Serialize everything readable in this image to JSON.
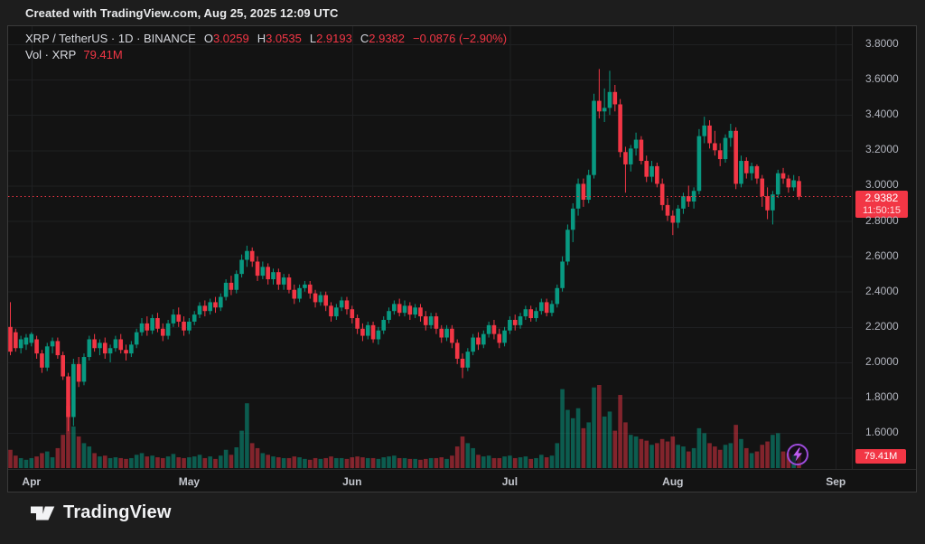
{
  "header": {
    "credit": "Created with TradingView.com, Aug 25, 2025 12:09 UTC"
  },
  "legend": {
    "title": "XRP / TetherUS · 1D · BINANCE",
    "ohlc": [
      {
        "label": "O",
        "value": "3.0259"
      },
      {
        "label": "H",
        "value": "3.0535"
      },
      {
        "label": "L",
        "value": "2.9193"
      },
      {
        "label": "C",
        "value": "2.9382"
      }
    ],
    "change": "−0.0876 (−2.90%)",
    "volume_label": "Vol · XRP",
    "volume_value": "79.41M"
  },
  "last_price_badge": {
    "price": "2.9382",
    "countdown": "11:50:15"
  },
  "volume_badge": "79.41M",
  "footer": {
    "brand": "TradingView"
  },
  "icons": {
    "boost": "lightning-bolt-icon",
    "logo": "tradingview-glyph-icon"
  },
  "colors": {
    "up": "#089981",
    "down": "#f23645",
    "vol_up": "rgba(8,153,129,0.55)",
    "vol_down": "rgba(242,54,69,0.5)",
    "grid": "#1f2022",
    "axis_text": "#b2b5be",
    "badge_bg": "#f23645",
    "boost_ring": "#9c4bd9",
    "boost_bolt": "#be5cf0"
  },
  "chart_data": {
    "type": "candlestick",
    "symbol": "XRP / TetherUS",
    "interval": "1D",
    "exchange": "BINANCE",
    "title": "XRP / TetherUS daily candlestick chart with volume",
    "legend_position": "top-left",
    "grid": true,
    "last_price": 2.9382,
    "last_change": "−0.0876 (−2.90%)",
    "last_volume": "79.41M",
    "price_axis": {
      "side": "right",
      "visible_range": [
        1.52,
        3.94
      ],
      "ticks": [
        {
          "price": 3.8,
          "label": "3.8000"
        },
        {
          "price": 3.6,
          "label": "3.6000"
        },
        {
          "price": 3.4,
          "label": "3.4000"
        },
        {
          "price": 3.2,
          "label": "3.2000"
        },
        {
          "price": 3.0,
          "label": "3.0000"
        },
        {
          "price": 2.8,
          "label": "2.8000"
        },
        {
          "price": 2.6,
          "label": "2.6000"
        },
        {
          "price": 2.4,
          "label": "2.4000"
        },
        {
          "price": 2.2,
          "label": "2.2000"
        },
        {
          "price": 2.0,
          "label": "2.0000"
        },
        {
          "price": 1.8,
          "label": "1.8000"
        },
        {
          "price": 1.6,
          "label": "1.6000"
        }
      ]
    },
    "time_axis": {
      "months": [
        {
          "label": "Apr",
          "index": 4
        },
        {
          "label": "May",
          "index": 34
        },
        {
          "label": "Jun",
          "index": 65
        },
        {
          "label": "Jul",
          "index": 95
        },
        {
          "label": "Aug",
          "index": 126
        },
        {
          "label": "Sep",
          "index": 157
        }
      ]
    },
    "candles_format": [
      "open",
      "high",
      "low",
      "close",
      "relative_volume_pct"
    ],
    "candles": [
      [
        2.2,
        2.34,
        2.04,
        2.06,
        22
      ],
      [
        2.17,
        2.19,
        2.06,
        2.08,
        15
      ],
      [
        2.08,
        2.15,
        2.05,
        2.13,
        12
      ],
      [
        2.1,
        2.16,
        2.07,
        2.14,
        10
      ],
      [
        2.11,
        2.17,
        2.09,
        2.16,
        12
      ],
      [
        2.13,
        2.15,
        2.02,
        2.05,
        14
      ],
      [
        2.05,
        2.07,
        1.94,
        1.97,
        18
      ],
      [
        1.97,
        2.11,
        1.95,
        2.09,
        20
      ],
      [
        2.09,
        2.14,
        2.05,
        2.12,
        13
      ],
      [
        2.12,
        2.14,
        2.02,
        2.04,
        24
      ],
      [
        2.04,
        2.06,
        1.9,
        1.92,
        40
      ],
      [
        1.92,
        1.94,
        1.61,
        1.69,
        75
      ],
      [
        1.69,
        2.02,
        1.64,
        1.99,
        50
      ],
      [
        1.99,
        2.03,
        1.86,
        1.89,
        38
      ],
      [
        1.89,
        2.05,
        1.87,
        2.03,
        30
      ],
      [
        2.03,
        2.15,
        2.01,
        2.13,
        26
      ],
      [
        2.13,
        2.16,
        2.06,
        2.08,
        18
      ],
      [
        2.08,
        2.13,
        2.04,
        2.11,
        14
      ],
      [
        2.11,
        2.14,
        2.02,
        2.05,
        15
      ],
      [
        2.05,
        2.1,
        2.0,
        2.08,
        12
      ],
      [
        2.08,
        2.15,
        2.06,
        2.13,
        13
      ],
      [
        2.13,
        2.16,
        2.05,
        2.07,
        12
      ],
      [
        2.07,
        2.1,
        2.01,
        2.05,
        11
      ],
      [
        2.05,
        2.12,
        2.03,
        2.1,
        12
      ],
      [
        2.1,
        2.19,
        2.08,
        2.17,
        16
      ],
      [
        2.17,
        2.25,
        2.15,
        2.22,
        18
      ],
      [
        2.22,
        2.26,
        2.15,
        2.18,
        14
      ],
      [
        2.18,
        2.27,
        2.16,
        2.25,
        15
      ],
      [
        2.25,
        2.28,
        2.17,
        2.19,
        13
      ],
      [
        2.19,
        2.22,
        2.12,
        2.15,
        12
      ],
      [
        2.15,
        2.24,
        2.13,
        2.22,
        14
      ],
      [
        2.22,
        2.3,
        2.2,
        2.27,
        17
      ],
      [
        2.27,
        2.31,
        2.2,
        2.23,
        13
      ],
      [
        2.23,
        2.26,
        2.15,
        2.18,
        12
      ],
      [
        2.18,
        2.25,
        2.16,
        2.23,
        13
      ],
      [
        2.23,
        2.29,
        2.21,
        2.27,
        14
      ],
      [
        2.27,
        2.34,
        2.25,
        2.32,
        16
      ],
      [
        2.32,
        2.35,
        2.26,
        2.29,
        12
      ],
      [
        2.29,
        2.36,
        2.27,
        2.34,
        14
      ],
      [
        2.34,
        2.37,
        2.28,
        2.31,
        11
      ],
      [
        2.31,
        2.39,
        2.29,
        2.37,
        15
      ],
      [
        2.37,
        2.47,
        2.35,
        2.45,
        22
      ],
      [
        2.45,
        2.49,
        2.38,
        2.41,
        16
      ],
      [
        2.41,
        2.52,
        2.39,
        2.5,
        25
      ],
      [
        2.5,
        2.61,
        2.48,
        2.58,
        45
      ],
      [
        2.58,
        2.66,
        2.54,
        2.63,
        78
      ],
      [
        2.63,
        2.65,
        2.54,
        2.57,
        30
      ],
      [
        2.57,
        2.6,
        2.46,
        2.49,
        24
      ],
      [
        2.49,
        2.57,
        2.47,
        2.54,
        18
      ],
      [
        2.54,
        2.56,
        2.44,
        2.47,
        16
      ],
      [
        2.47,
        2.53,
        2.44,
        2.51,
        14
      ],
      [
        2.51,
        2.53,
        2.41,
        2.44,
        13
      ],
      [
        2.44,
        2.5,
        2.41,
        2.48,
        12
      ],
      [
        2.48,
        2.5,
        2.39,
        2.41,
        12
      ],
      [
        2.41,
        2.44,
        2.33,
        2.36,
        14
      ],
      [
        2.36,
        2.44,
        2.34,
        2.42,
        13
      ],
      [
        2.42,
        2.46,
        2.4,
        2.44,
        11
      ],
      [
        2.44,
        2.46,
        2.36,
        2.39,
        10
      ],
      [
        2.39,
        2.41,
        2.31,
        2.34,
        12
      ],
      [
        2.34,
        2.4,
        2.32,
        2.38,
        11
      ],
      [
        2.38,
        2.4,
        2.29,
        2.32,
        12
      ],
      [
        2.32,
        2.34,
        2.23,
        2.26,
        14
      ],
      [
        2.26,
        2.33,
        2.24,
        2.31,
        12
      ],
      [
        2.31,
        2.37,
        2.29,
        2.35,
        12
      ],
      [
        2.35,
        2.37,
        2.27,
        2.3,
        11
      ],
      [
        2.3,
        2.32,
        2.22,
        2.25,
        13
      ],
      [
        2.25,
        2.27,
        2.16,
        2.19,
        14
      ],
      [
        2.19,
        2.22,
        2.12,
        2.15,
        13
      ],
      [
        2.15,
        2.23,
        2.13,
        2.21,
        12
      ],
      [
        2.21,
        2.23,
        2.11,
        2.13,
        12
      ],
      [
        2.13,
        2.2,
        2.1,
        2.18,
        11
      ],
      [
        2.18,
        2.26,
        2.16,
        2.24,
        13
      ],
      [
        2.24,
        2.31,
        2.22,
        2.29,
        14
      ],
      [
        2.29,
        2.35,
        2.27,
        2.33,
        15
      ],
      [
        2.33,
        2.36,
        2.26,
        2.28,
        12
      ],
      [
        2.28,
        2.35,
        2.26,
        2.32,
        12
      ],
      [
        2.32,
        2.34,
        2.24,
        2.27,
        11
      ],
      [
        2.27,
        2.33,
        2.25,
        2.31,
        11
      ],
      [
        2.31,
        2.33,
        2.23,
        2.26,
        10
      ],
      [
        2.26,
        2.29,
        2.18,
        2.21,
        11
      ],
      [
        2.21,
        2.28,
        2.19,
        2.26,
        12
      ],
      [
        2.26,
        2.28,
        2.16,
        2.19,
        12
      ],
      [
        2.19,
        2.21,
        2.11,
        2.14,
        13
      ],
      [
        2.14,
        2.21,
        2.12,
        2.19,
        11
      ],
      [
        2.19,
        2.21,
        2.08,
        2.11,
        15
      ],
      [
        2.11,
        2.13,
        1.99,
        2.02,
        26
      ],
      [
        2.02,
        2.05,
        1.91,
        1.97,
        38
      ],
      [
        1.97,
        2.08,
        1.95,
        2.06,
        30
      ],
      [
        2.06,
        2.16,
        2.04,
        2.14,
        24
      ],
      [
        2.14,
        2.17,
        2.07,
        2.1,
        16
      ],
      [
        2.1,
        2.18,
        2.08,
        2.16,
        14
      ],
      [
        2.16,
        2.23,
        2.14,
        2.21,
        15
      ],
      [
        2.21,
        2.24,
        2.13,
        2.16,
        12
      ],
      [
        2.16,
        2.19,
        2.08,
        2.11,
        12
      ],
      [
        2.11,
        2.2,
        2.09,
        2.18,
        14
      ],
      [
        2.18,
        2.26,
        2.16,
        2.24,
        15
      ],
      [
        2.24,
        2.27,
        2.18,
        2.21,
        12
      ],
      [
        2.21,
        2.28,
        2.19,
        2.26,
        13
      ],
      [
        2.26,
        2.32,
        2.24,
        2.3,
        14
      ],
      [
        2.3,
        2.32,
        2.23,
        2.25,
        11
      ],
      [
        2.25,
        2.31,
        2.23,
        2.29,
        12
      ],
      [
        2.29,
        2.36,
        2.27,
        2.34,
        16
      ],
      [
        2.34,
        2.36,
        2.26,
        2.28,
        13
      ],
      [
        2.28,
        2.35,
        2.26,
        2.33,
        15
      ],
      [
        2.33,
        2.44,
        2.31,
        2.42,
        30
      ],
      [
        2.42,
        2.6,
        2.4,
        2.57,
        95
      ],
      [
        2.57,
        2.78,
        2.55,
        2.75,
        70
      ],
      [
        2.75,
        2.9,
        2.68,
        2.87,
        60
      ],
      [
        2.87,
        3.04,
        2.83,
        3.01,
        72
      ],
      [
        3.01,
        3.04,
        2.88,
        2.92,
        48
      ],
      [
        2.92,
        3.09,
        2.9,
        3.06,
        55
      ],
      [
        3.06,
        3.52,
        3.04,
        3.48,
        97
      ],
      [
        3.48,
        3.66,
        3.38,
        3.42,
        100
      ],
      [
        3.42,
        3.55,
        3.36,
        3.44,
        62
      ],
      [
        3.44,
        3.65,
        3.4,
        3.53,
        68
      ],
      [
        3.53,
        3.57,
        3.42,
        3.46,
        45
      ],
      [
        3.46,
        3.49,
        3.16,
        3.19,
        88
      ],
      [
        3.19,
        3.22,
        2.96,
        3.12,
        55
      ],
      [
        3.12,
        3.23,
        3.08,
        3.21,
        40
      ],
      [
        3.21,
        3.3,
        3.17,
        3.26,
        38
      ],
      [
        3.26,
        3.28,
        3.12,
        3.14,
        35
      ],
      [
        3.14,
        3.17,
        3.02,
        3.05,
        33
      ],
      [
        3.05,
        3.14,
        3.02,
        3.11,
        28
      ],
      [
        3.11,
        3.13,
        2.99,
        3.01,
        30
      ],
      [
        3.01,
        3.04,
        2.86,
        2.89,
        35
      ],
      [
        2.89,
        2.93,
        2.8,
        2.83,
        32
      ],
      [
        2.83,
        2.86,
        2.72,
        2.79,
        38
      ],
      [
        2.79,
        2.89,
        2.76,
        2.87,
        28
      ],
      [
        2.87,
        2.96,
        2.84,
        2.94,
        26
      ],
      [
        2.94,
        3.0,
        2.88,
        2.91,
        20
      ],
      [
        2.91,
        2.99,
        2.87,
        2.97,
        24
      ],
      [
        2.97,
        3.32,
        2.95,
        3.28,
        48
      ],
      [
        3.28,
        3.39,
        3.24,
        3.34,
        42
      ],
      [
        3.34,
        3.37,
        3.21,
        3.24,
        30
      ],
      [
        3.24,
        3.31,
        3.17,
        3.2,
        26
      ],
      [
        3.2,
        3.24,
        3.11,
        3.15,
        22
      ],
      [
        3.15,
        3.29,
        3.13,
        3.27,
        28
      ],
      [
        3.27,
        3.35,
        3.22,
        3.31,
        30
      ],
      [
        3.31,
        3.33,
        2.98,
        3.01,
        52
      ],
      [
        3.01,
        3.17,
        2.99,
        3.14,
        35
      ],
      [
        3.14,
        3.16,
        3.04,
        3.07,
        24
      ],
      [
        3.07,
        3.13,
        3.03,
        3.11,
        18
      ],
      [
        3.11,
        3.12,
        3.01,
        3.04,
        20
      ],
      [
        3.04,
        3.06,
        2.88,
        2.94,
        28
      ],
      [
        2.94,
        2.99,
        2.81,
        2.86,
        32
      ],
      [
        2.86,
        2.97,
        2.78,
        2.95,
        40
      ],
      [
        2.95,
        3.09,
        2.93,
        3.07,
        42
      ],
      [
        3.07,
        3.1,
        3.01,
        3.04,
        20
      ],
      [
        3.04,
        3.06,
        2.96,
        2.99,
        18
      ],
      [
        2.99,
        3.06,
        2.97,
        3.03,
        16
      ],
      [
        3.0259,
        3.0535,
        2.9193,
        2.9382,
        18
      ]
    ]
  }
}
